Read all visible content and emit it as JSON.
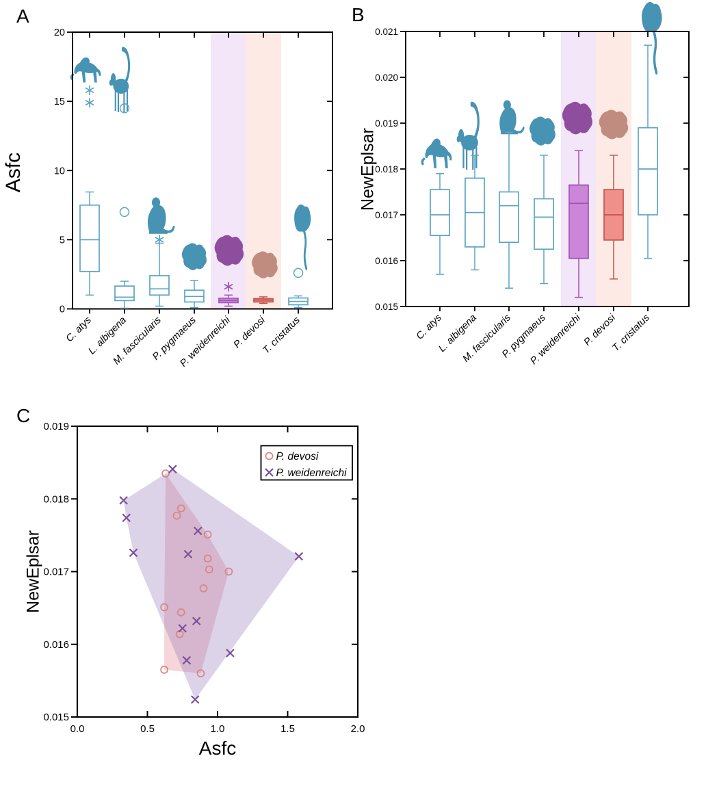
{
  "labels": {
    "panel_a": "A",
    "panel_b": "B",
    "panel_c": "C"
  },
  "colors": {
    "teal": "#4B97B7",
    "teal_box": "#5BA5C4",
    "purple_fill": "#CB86D9",
    "purple_stroke": "#A052B5",
    "salmon_fill": "#F0908A",
    "salmon_stroke": "#C2534E",
    "band_lavender": "#F3E6F8",
    "band_pink": "#FDEAE5",
    "silhouette_teal": "#4793B4",
    "silhouette_purple": "#8E4E9D",
    "silhouette_brown": "#C08C7F",
    "hull_devosi": "rgba(228,128,138,0.32)",
    "hull_weidenreichi": "rgba(138,108,182,0.30)",
    "marker_devosi": "#D9847F",
    "marker_weidenreichi": "#7C4E9B",
    "axis": "#000000"
  },
  "chart_data": [
    {
      "panel": "A",
      "type": "box",
      "title": "",
      "xlabel": "",
      "ylabel": "Asfc",
      "ylim": [
        0,
        20
      ],
      "yticks": [
        {
          "value": 0,
          "label": "0"
        },
        {
          "value": 5,
          "label": "5"
        },
        {
          "value": 10,
          "label": "10"
        },
        {
          "value": 15,
          "label": "15"
        },
        {
          "value": 20,
          "label": "20"
        }
      ],
      "categories": [
        "C. atys",
        "L. albigena",
        "M. fascicularis",
        "P. pygmaeus",
        "P. weidenreichi",
        "P. devosi",
        "T. cristatus"
      ],
      "boxes": [
        {
          "species": "C. atys",
          "style": "teal",
          "silhouette": "baboon",
          "whisker_low": 1.0,
          "q1": 2.7,
          "median": 5.0,
          "q3": 7.5,
          "whisker_high": 8.45,
          "outliers_extreme": [
            14.9,
            15.8
          ],
          "outliers_mild": []
        },
        {
          "species": "L. albigena",
          "style": "teal",
          "silhouette": "albigena",
          "whisker_low": 0.05,
          "q1": 0.6,
          "median": 0.85,
          "q3": 1.65,
          "whisker_high": 2.0,
          "outliers_extreme": [],
          "outliers_mild": [
            7.0,
            14.5
          ]
        },
        {
          "species": "M. fascicularis",
          "style": "teal",
          "silhouette": "macaque",
          "whisker_low": 0.2,
          "q1": 1.0,
          "median": 1.45,
          "q3": 2.4,
          "whisker_high": 4.75,
          "outliers_extreme": [
            5.0
          ],
          "outliers_mild": []
        },
        {
          "species": "P. pygmaeus",
          "style": "teal",
          "silhouette": "blob",
          "whisker_low": 0.1,
          "q1": 0.5,
          "median": 0.9,
          "q3": 1.35,
          "whisker_high": 2.05,
          "outliers_extreme": [],
          "outliers_mild": []
        },
        {
          "species": "P. weidenreichi",
          "style": "purple",
          "silhouette": "blob",
          "whisker_low": 0.2,
          "q1": 0.45,
          "median": 0.61,
          "q3": 0.77,
          "whisker_high": 1.0,
          "outliers_extreme": [
            1.6
          ],
          "outliers_mild": []
        },
        {
          "species": "P. devosi",
          "style": "salmon",
          "silhouette": "blob",
          "whisker_low": 0.4,
          "q1": 0.5,
          "median": 0.63,
          "q3": 0.74,
          "whisker_high": 0.87,
          "outliers_extreme": [],
          "outliers_mild": []
        },
        {
          "species": "T. cristatus",
          "style": "teal",
          "silhouette": "langur",
          "whisker_low": 0.1,
          "q1": 0.3,
          "median": 0.54,
          "q3": 0.79,
          "whisker_high": 0.94,
          "outliers_extreme": [],
          "outliers_mild": [
            2.6
          ]
        }
      ],
      "highlight_bands": [
        {
          "category": "P. weidenreichi",
          "color_key": "band_lavender"
        },
        {
          "category": "P. devosi",
          "color_key": "band_pink"
        }
      ]
    },
    {
      "panel": "B",
      "type": "box",
      "title": "",
      "xlabel": "",
      "ylabel": "NewEplsar",
      "ylim": [
        0.015,
        0.021
      ],
      "yticks": [
        {
          "value": 0.015,
          "label": "0.015"
        },
        {
          "value": 0.016,
          "label": "0.016"
        },
        {
          "value": 0.017,
          "label": "0.017"
        },
        {
          "value": 0.018,
          "label": "0.018"
        },
        {
          "value": 0.019,
          "label": "0.019"
        },
        {
          "value": 0.02,
          "label": "0.020"
        },
        {
          "value": 0.021,
          "label": "0.021"
        }
      ],
      "categories": [
        "C. atys",
        "L. albigena",
        "M. fascicularis",
        "P. pygmaeus",
        "P. weidenreichi",
        "P. devosi",
        "T. cristatus"
      ],
      "boxes": [
        {
          "species": "C. atys",
          "style": "teal",
          "silhouette": "baboon",
          "whisker_low": 0.0157,
          "q1": 0.01655,
          "median": 0.017,
          "q3": 0.01755,
          "whisker_high": 0.0179,
          "outliers_extreme": [],
          "outliers_mild": []
        },
        {
          "species": "L. albigena",
          "style": "teal",
          "silhouette": "albigena",
          "whisker_low": 0.0158,
          "q1": 0.0163,
          "median": 0.01705,
          "q3": 0.0178,
          "whisker_high": 0.0183,
          "outliers_extreme": [],
          "outliers_mild": []
        },
        {
          "species": "M. fascicularis",
          "style": "teal",
          "silhouette": "macaque",
          "whisker_low": 0.0154,
          "q1": 0.0164,
          "median": 0.0172,
          "q3": 0.0175,
          "whisker_high": 0.0188,
          "outliers_extreme": [],
          "outliers_mild": []
        },
        {
          "species": "P. pygmaeus",
          "style": "teal",
          "silhouette": "blob",
          "whisker_low": 0.0155,
          "q1": 0.01625,
          "median": 0.01695,
          "q3": 0.01735,
          "whisker_high": 0.0183,
          "outliers_extreme": [],
          "outliers_mild": []
        },
        {
          "species": "P. weidenreichi",
          "style": "purple",
          "silhouette": "blob",
          "whisker_low": 0.0152,
          "q1": 0.01605,
          "median": 0.01725,
          "q3": 0.01765,
          "whisker_high": 0.0184,
          "outliers_extreme": [],
          "outliers_mild": []
        },
        {
          "species": "P. devosi",
          "style": "salmon",
          "silhouette": "blob",
          "whisker_low": 0.0156,
          "q1": 0.01645,
          "median": 0.017,
          "q3": 0.01755,
          "whisker_high": 0.0183,
          "outliers_extreme": [],
          "outliers_mild": []
        },
        {
          "species": "T. cristatus",
          "style": "teal",
          "silhouette": "langur",
          "whisker_low": 0.01605,
          "q1": 0.017,
          "median": 0.018,
          "q3": 0.0189,
          "whisker_high": 0.0207,
          "outliers_extreme": [],
          "outliers_mild": []
        }
      ],
      "highlight_bands": [
        {
          "category": "P. weidenreichi",
          "color_key": "band_lavender"
        },
        {
          "category": "P. devosi",
          "color_key": "band_pink"
        }
      ]
    },
    {
      "panel": "C",
      "type": "scatter",
      "title": "",
      "xlabel": "Asfc",
      "ylabel": "NewEplsar",
      "xlim": [
        0.0,
        2.0
      ],
      "ylim": [
        0.015,
        0.019
      ],
      "xticks": [
        {
          "value": 0.0,
          "label": "0.0"
        },
        {
          "value": 0.5,
          "label": "0.5"
        },
        {
          "value": 1.0,
          "label": "1.0"
        },
        {
          "value": 1.5,
          "label": "1.5"
        },
        {
          "value": 2.0,
          "label": "2.0"
        }
      ],
      "yticks": [
        {
          "value": 0.015,
          "label": "0.015"
        },
        {
          "value": 0.016,
          "label": "0.016"
        },
        {
          "value": 0.017,
          "label": "0.017"
        },
        {
          "value": 0.018,
          "label": "0.018"
        },
        {
          "value": 0.019,
          "label": "0.019"
        }
      ],
      "legend": {
        "position": "top-right",
        "entries": [
          {
            "label": "P. devosi",
            "marker": "circle",
            "color_key": "marker_devosi"
          },
          {
            "label": "P. weidenreichi",
            "marker": "x",
            "color_key": "marker_weidenreichi"
          }
        ]
      },
      "series": [
        {
          "name": "P. devosi",
          "marker": "circle",
          "color_key": "marker_devosi",
          "hull_color_key": "hull_devosi",
          "points": [
            [
              0.63,
              0.01835
            ],
            [
              0.74,
              0.01787
            ],
            [
              0.71,
              0.01777
            ],
            [
              0.93,
              0.01751
            ],
            [
              0.93,
              0.01718
            ],
            [
              0.94,
              0.01703
            ],
            [
              1.08,
              0.017
            ],
            [
              0.9,
              0.01677
            ],
            [
              0.62,
              0.01651
            ],
            [
              0.74,
              0.01644
            ],
            [
              0.73,
              0.01614
            ],
            [
              0.62,
              0.01565
            ],
            [
              0.88,
              0.0156
            ]
          ],
          "hull": [
            [
              0.63,
              0.01835
            ],
            [
              0.93,
              0.01751
            ],
            [
              1.08,
              0.017
            ],
            [
              0.88,
              0.0156
            ],
            [
              0.62,
              0.01565
            ],
            [
              0.62,
              0.01651
            ]
          ]
        },
        {
          "name": "P. weidenreichi",
          "marker": "x",
          "color_key": "marker_weidenreichi",
          "hull_color_key": "hull_weidenreichi",
          "points": [
            [
              0.68,
              0.01841
            ],
            [
              0.33,
              0.01798
            ],
            [
              0.35,
              0.01774
            ],
            [
              0.4,
              0.01726
            ],
            [
              0.86,
              0.01756
            ],
            [
              0.79,
              0.01724
            ],
            [
              1.58,
              0.01721
            ],
            [
              0.85,
              0.01632
            ],
            [
              0.75,
              0.01622
            ],
            [
              1.09,
              0.01588
            ],
            [
              0.78,
              0.01578
            ],
            [
              0.84,
              0.01524
            ]
          ],
          "hull": [
            [
              0.33,
              0.01798
            ],
            [
              0.68,
              0.01841
            ],
            [
              1.58,
              0.01721
            ],
            [
              0.84,
              0.01524
            ],
            [
              0.4,
              0.01726
            ],
            [
              0.35,
              0.01774
            ]
          ]
        }
      ]
    }
  ]
}
